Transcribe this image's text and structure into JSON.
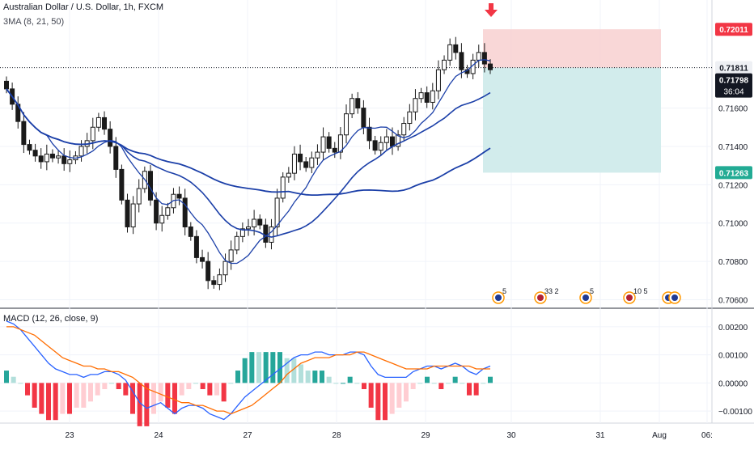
{
  "header": {
    "title": "Australian Dollar / U.S. Dollar, 1h, FXCM",
    "indicator": "3MA (8, 21, 50)"
  },
  "macd_header": {
    "label": "MACD (12, 26, close, 9)"
  },
  "colors": {
    "up": "#1a1a1a",
    "down": "#1a1a1a",
    "ma8": "#1b3fa8",
    "ma21": "#1b3fa8",
    "ma50": "#1b3fa8",
    "stop_zone": "#f8d0d0",
    "target_zone": "#cdeaea",
    "stop_label": "#f23645",
    "target_label": "#22ab94",
    "macd_line": "#2962ff",
    "signal_line": "#ff6d00",
    "hist_pos_strong": "#26a69a",
    "hist_pos_weak": "#b2dfdb",
    "hist_neg_strong": "#f23645",
    "hist_neg_weak": "#ffcdd2",
    "signal_arrow": "#f23645"
  },
  "price_scale": {
    "ticks": [
      "0.71600",
      "0.71400",
      "0.71200",
      "0.71000",
      "0.70800",
      "0.70600"
    ]
  },
  "macd_scale": {
    "ticks": [
      "0.00200",
      "0.00100",
      "0.00000",
      "−0.00100"
    ]
  },
  "time_axis": {
    "labels": [
      "23",
      "24",
      "27",
      "28",
      "29",
      "30",
      "31",
      "Aug",
      "06:"
    ]
  },
  "labels": {
    "stop": "0.72011",
    "entry": "0.71811",
    "last": "0.71798",
    "countdown": "36:04",
    "target": "0.71263"
  },
  "events": [
    {
      "icon": "flag-au-icon",
      "count": "5"
    },
    {
      "icon": "flag-us-icon",
      "count": "33 2"
    },
    {
      "icon": "flag-au-icon",
      "count": "5"
    },
    {
      "icon": "flag-us-icon",
      "count": "10 5"
    },
    {
      "icon": "flag-au-icon",
      "count": ""
    }
  ],
  "chart_data": {
    "type": "candlestick",
    "title": "Australian Dollar / U.S. Dollar, 1h, FXCM",
    "ylim": [
      0.7056,
      0.7213
    ],
    "x_labels": [
      "23",
      "24",
      "27",
      "28",
      "29",
      "30",
      "31",
      "Aug"
    ],
    "ohlc_close_approx": [
      0.717,
      0.7162,
      0.7153,
      0.7141,
      0.7138,
      0.7135,
      0.7132,
      0.7136,
      0.7134,
      0.7135,
      0.7131,
      0.7133,
      0.7135,
      0.714,
      0.7143,
      0.715,
      0.7155,
      0.7149,
      0.714,
      0.7128,
      0.7112,
      0.7098,
      0.711,
      0.7118,
      0.7127,
      0.7112,
      0.71,
      0.7104,
      0.7108,
      0.7115,
      0.7113,
      0.7098,
      0.7093,
      0.7082,
      0.708,
      0.707,
      0.7068,
      0.7073,
      0.708,
      0.7086,
      0.7093,
      0.7097,
      0.7098,
      0.7102,
      0.7099,
      0.709,
      0.7098,
      0.7113,
      0.7124,
      0.7126,
      0.7136,
      0.7132,
      0.7129,
      0.7134,
      0.7137,
      0.7145,
      0.7139,
      0.7137,
      0.7146,
      0.7157,
      0.7165,
      0.716,
      0.715,
      0.7143,
      0.7138,
      0.7142,
      0.7145,
      0.714,
      0.7146,
      0.7152,
      0.7158,
      0.7165,
      0.7168,
      0.7163,
      0.7169,
      0.718,
      0.7185,
      0.7193,
      0.7189,
      0.718,
      0.7178,
      0.7185,
      0.7189,
      0.7183,
      0.718
    ],
    "moving_averages": [
      {
        "name": "MA 8"
      },
      {
        "name": "MA 21"
      },
      {
        "name": "MA 50"
      }
    ],
    "position": {
      "stop": 0.72011,
      "entry": 0.71811,
      "target": 0.71263
    },
    "last_price": 0.71798,
    "macd": {
      "label": "MACD (12, 26, close, 9)",
      "ylim": [
        -0.0014,
        0.0026
      ],
      "macd": [
        0.0022,
        0.0021,
        0.0019,
        0.0016,
        0.0013,
        0.001,
        0.0007,
        0.0005,
        0.0004,
        0.0003,
        0.0003,
        0.0002,
        0.0003,
        0.0003,
        0.0004,
        0.0004,
        0.0003,
        0.0001,
        -0.0003,
        -0.0007,
        -0.0009,
        -0.0008,
        -0.0007,
        -0.0009,
        -0.0011,
        -0.0009,
        -0.0008,
        -0.0008,
        -0.0009,
        -0.0011,
        -0.0012,
        -0.0013,
        -0.0011,
        -0.0008,
        -0.0005,
        -0.0003,
        -0.0001,
        0.0001,
        0.0003,
        0.0005,
        0.0007,
        0.0009,
        0.001,
        0.001,
        0.0011,
        0.0011,
        0.001,
        0.001,
        0.001,
        0.0011,
        0.0011,
        0.001,
        0.0006,
        0.0003,
        0.0002,
        0.0002,
        0.0002,
        0.0002,
        0.0004,
        0.0005,
        0.0006,
        0.0006,
        0.0005,
        0.0006,
        0.0007,
        0.0006,
        0.0004,
        0.0003,
        0.0005,
        0.0006
      ],
      "signal": [
        0.002,
        0.002,
        0.0019,
        0.0018,
        0.0017,
        0.0015,
        0.0013,
        0.0011,
        0.0009,
        0.0008,
        0.0007,
        0.0006,
        0.0006,
        0.0005,
        0.0005,
        0.0004,
        0.0004,
        0.0003,
        0.0002,
        0.0,
        -0.0002,
        -0.0003,
        -0.0004,
        -0.0005,
        -0.0006,
        -0.0007,
        -0.0007,
        -0.0008,
        -0.0008,
        -0.0009,
        -0.001,
        -0.001,
        -0.0011,
        -0.001,
        -0.0009,
        -0.0008,
        -0.0006,
        -0.0004,
        -0.0002,
        0.0,
        0.0003,
        0.0005,
        0.0007,
        0.0008,
        0.0009,
        0.0009,
        0.0009,
        0.001,
        0.001,
        0.001,
        0.0011,
        0.0011,
        0.001,
        0.0009,
        0.0008,
        0.0007,
        0.0006,
        0.0005,
        0.0005,
        0.0005,
        0.0005,
        0.0006,
        0.0006,
        0.0006,
        0.0006,
        0.0006,
        0.0006,
        0.0005,
        0.0005,
        0.0005
      ]
    }
  }
}
